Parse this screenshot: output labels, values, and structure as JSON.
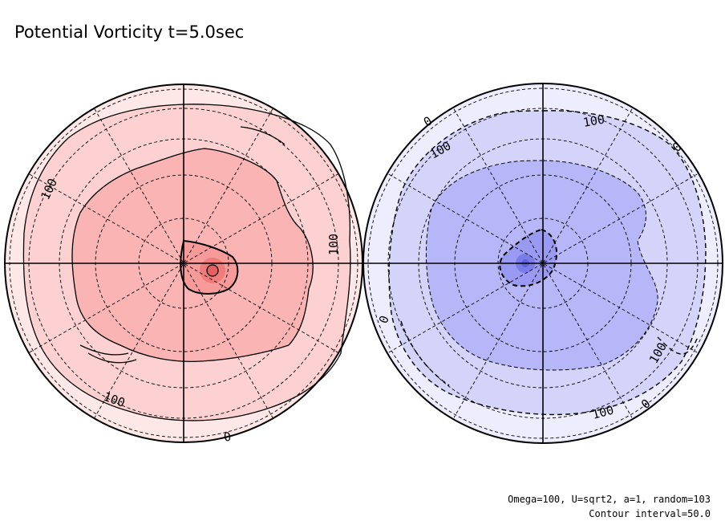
{
  "chart_data": {
    "type": "polar-contour",
    "title": "Potential Vorticity t=5.0sec",
    "footer": {
      "params": "Omega=100, U=sqrt2, a=1, random=103",
      "contour_interval": "Contour interval=50.0"
    },
    "contour_interval": 50.0,
    "grid": true,
    "panels": [
      {
        "hemisphere": "positive",
        "colors": {
          "outer": "#fde7e7",
          "band_0_100": "#fdd1d1",
          "band_100_150": "#fbb4b4",
          "band_150_200": "#f79a9a",
          "band_200_250": "#f07c7c",
          "band_250_300": "#e56060",
          "line": "#000000"
        },
        "contour_labels": [
          "100",
          "100",
          "100",
          "0"
        ]
      },
      {
        "hemisphere": "negative",
        "colors": {
          "outer": "#ededfd",
          "band_0_m100": "#d4d4fb",
          "band_m100_m150": "#b6b6f8",
          "band_m150_m200": "#9a9af2",
          "band_m200_m250": "#7c7ce8",
          "band_m250_m300": "#6262dc",
          "line": "#000000"
        },
        "contour_labels": [
          "0",
          "0",
          "100",
          "100",
          "100",
          "0",
          "100",
          "0"
        ]
      }
    ]
  }
}
